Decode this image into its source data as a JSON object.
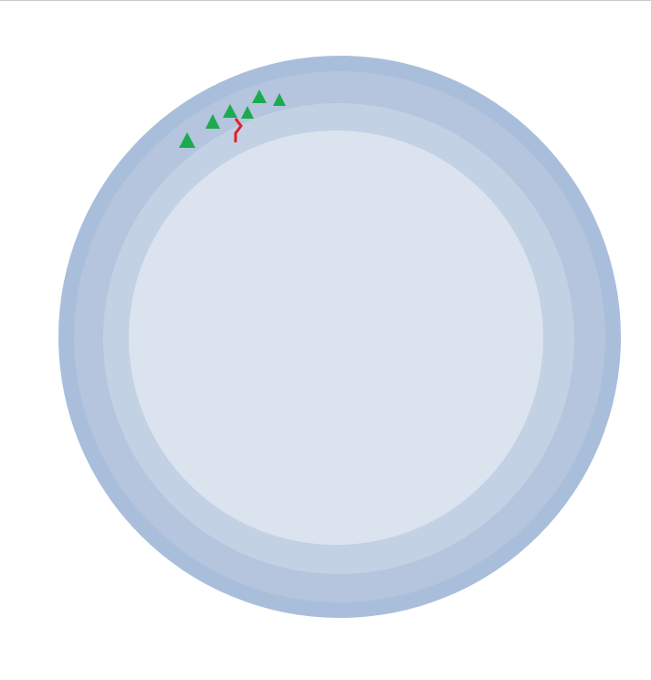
{
  "colors": {
    "background": "#ffffff",
    "border": "#c9c9c9",
    "ring_outer": "#a9bedb",
    "ring_second": "#b4c5dd",
    "ring_third": "#c3d1e4",
    "disc_center": "#dbe3ee",
    "tree": "#1daa4f",
    "river": "#e41f26"
  },
  "icons": {
    "tree": "tree-icon",
    "river": "river-icon"
  }
}
